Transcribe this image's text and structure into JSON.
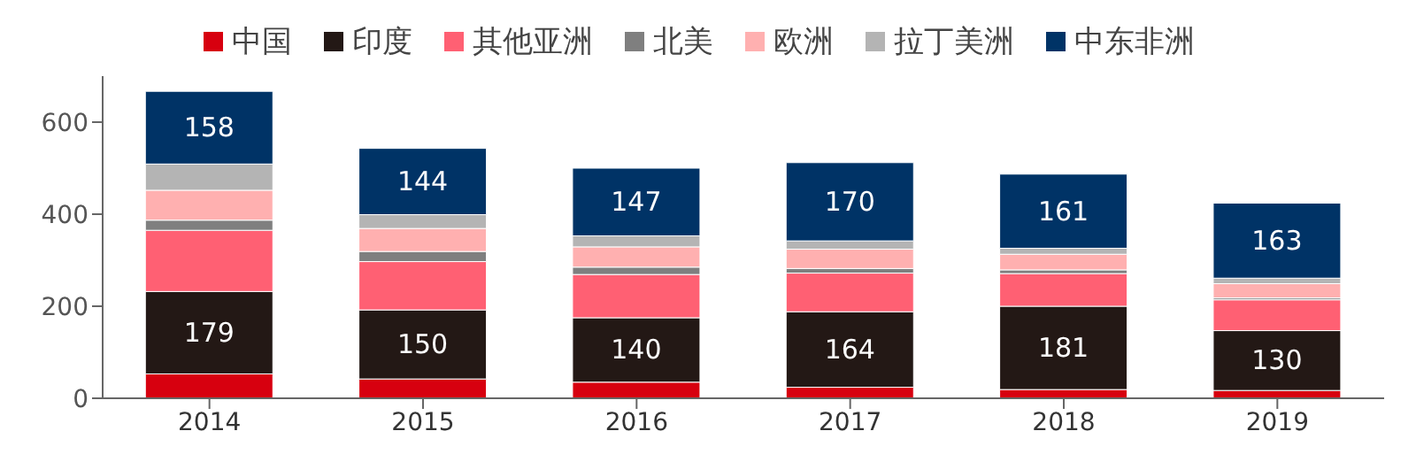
{
  "chart_data": {
    "type": "bar",
    "stacked": true,
    "categories": [
      "2014",
      "2015",
      "2016",
      "2017",
      "2018",
      "2019"
    ],
    "series": [
      {
        "name": "中国",
        "color": "#d7000f",
        "values": [
          53,
          42,
          35,
          24,
          19,
          17
        ]
      },
      {
        "name": "印度",
        "color": "#231815",
        "values": [
          179,
          150,
          140,
          164,
          181,
          130
        ],
        "value_labels": [
          "179",
          "150",
          "140",
          "164",
          "181",
          "130"
        ]
      },
      {
        "name": "其他亚洲",
        "color": "#ff6073",
        "values": [
          133,
          105,
          94,
          84,
          71,
          67
        ]
      },
      {
        "name": "北美",
        "color": "#7f7f7f",
        "values": [
          22,
          22,
          16,
          10,
          8,
          4
        ]
      },
      {
        "name": "欧洲",
        "color": "#ffb0b0",
        "values": [
          65,
          50,
          44,
          42,
          34,
          31
        ]
      },
      {
        "name": "拉丁美洲",
        "color": "#b4b4b4",
        "values": [
          57,
          30,
          24,
          18,
          13,
          12
        ]
      },
      {
        "name": "中东非洲",
        "color": "#003366",
        "values": [
          158,
          144,
          147,
          170,
          161,
          163
        ],
        "value_labels": [
          "158",
          "144",
          "147",
          "170",
          "161",
          "163"
        ]
      }
    ],
    "ylim": [
      0,
      700
    ],
    "yticks": [
      0,
      200,
      400,
      600
    ],
    "grid": false,
    "legend": "top"
  }
}
